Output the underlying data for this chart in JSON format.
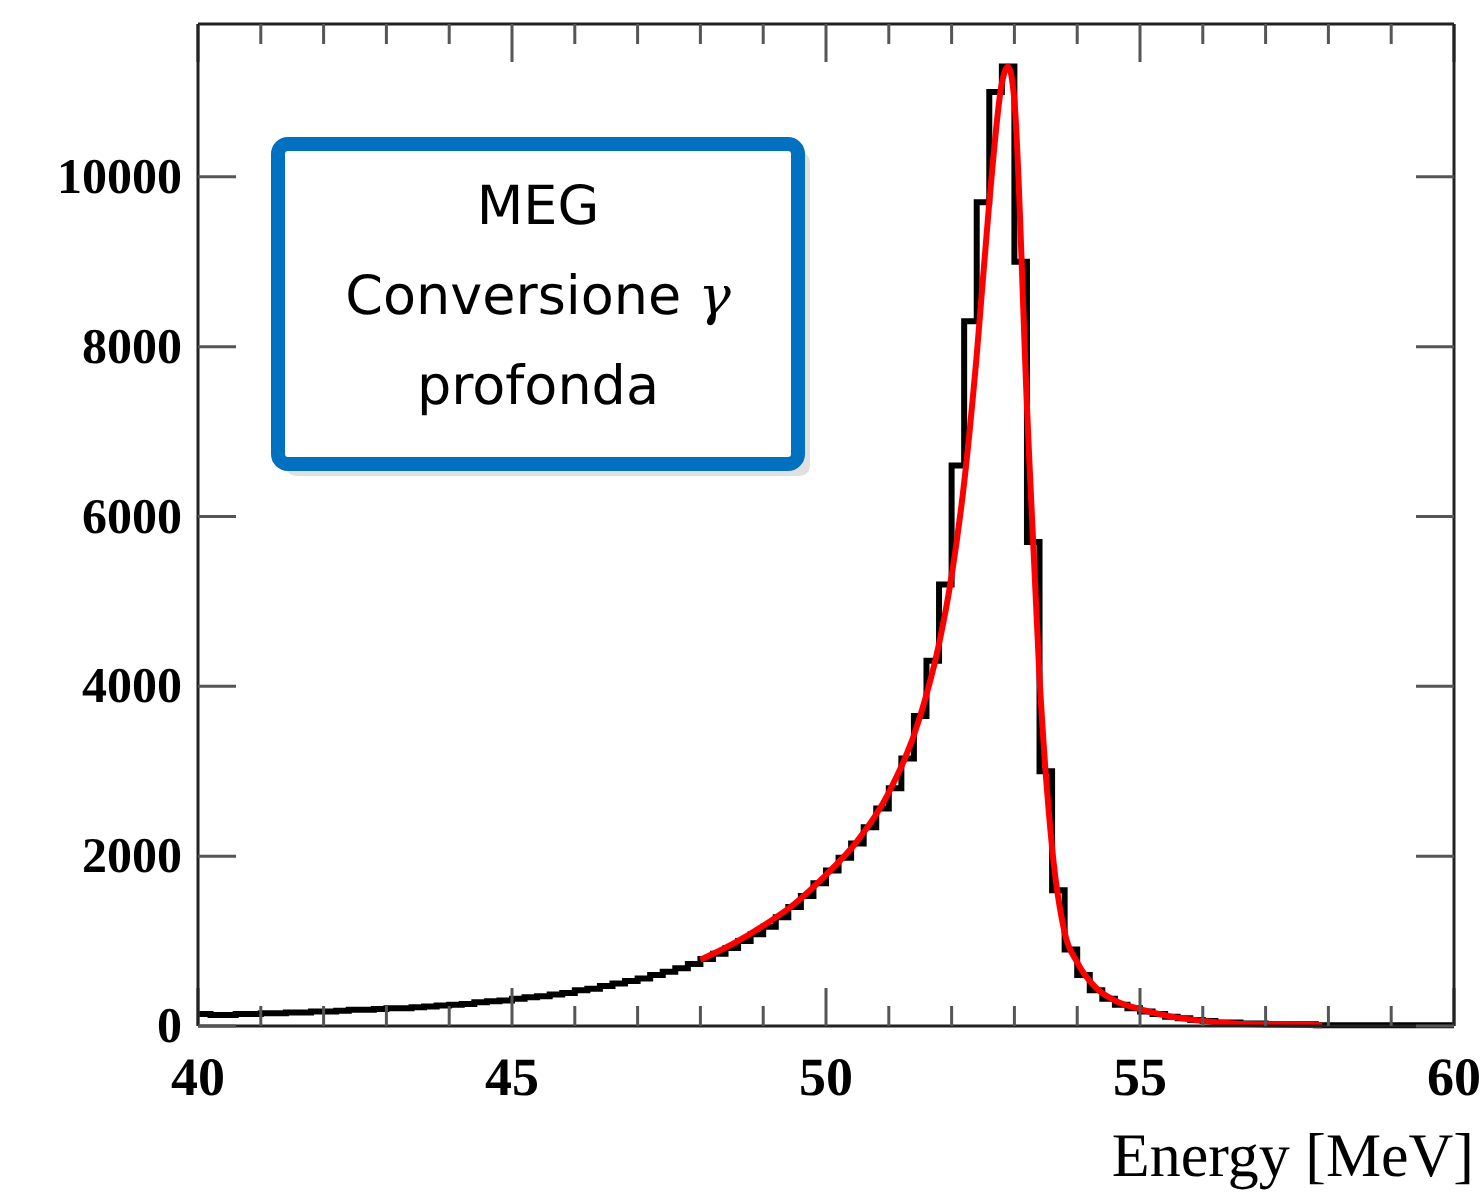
{
  "chart_data": {
    "type": "histogram",
    "xlabel": "Energy [MeV]",
    "annotations": [
      "MEG\nConversione γ\nprofonda"
    ],
    "xlim": [
      40,
      60
    ],
    "ylim": [
      0,
      11800
    ],
    "xticks": [
      40,
      {
        "value": 41,
        "label": null
      },
      {
        "value": 42,
        "label": null
      },
      {
        "value": 43,
        "label": null
      },
      {
        "value": 44,
        "label": null
      },
      45,
      {
        "value": 46,
        "label": null
      },
      {
        "value": 47,
        "label": null
      },
      {
        "value": 48,
        "label": null
      },
      {
        "value": 49,
        "label": null
      },
      50,
      {
        "value": 51,
        "label": null
      },
      {
        "value": 52,
        "label": null
      },
      {
        "value": 53,
        "label": null
      },
      {
        "value": 54,
        "label": null
      },
      55,
      {
        "value": 56,
        "label": null
      },
      {
        "value": 57,
        "label": null
      },
      {
        "value": 58,
        "label": null
      },
      {
        "value": 59,
        "label": null
      },
      60
    ],
    "yticks": [
      0,
      2000,
      4000,
      6000,
      8000,
      10000
    ],
    "grid": false,
    "bins": [
      40,
      40.2,
      40.4,
      40.6,
      40.8,
      41,
      41.2,
      41.4,
      41.6,
      41.8,
      42,
      42.2,
      42.4,
      42.6,
      42.8,
      43,
      43.2,
      43.4,
      43.6,
      43.8,
      44,
      44.2,
      44.4,
      44.6,
      44.8,
      45,
      45.2,
      45.4,
      45.6,
      45.8,
      46,
      46.2,
      46.4,
      46.6,
      46.8,
      47,
      47.2,
      47.4,
      47.6,
      47.8,
      48,
      48.2,
      48.4,
      48.6,
      48.8,
      49,
      49.2,
      49.4,
      49.6,
      49.8,
      50,
      50.2,
      50.4,
      50.6,
      50.8,
      51,
      51.2,
      51.4,
      51.6,
      51.8,
      52,
      52.2,
      52.4,
      52.6,
      52.8,
      53,
      53.2,
      53.4,
      53.6,
      53.8,
      54,
      54.2,
      54.4,
      54.6,
      54.8,
      55,
      55.2,
      55.4,
      55.6,
      55.8,
      56,
      56.2,
      56.4,
      56.6,
      56.8,
      57,
      57.2,
      57.4,
      57.6,
      57.8,
      58,
      58.2,
      58.4,
      58.6,
      58.8,
      59,
      59.2,
      59.4,
      59.6,
      59.8,
      60
    ],
    "series": [
      {
        "color": "#000000",
        "values": [
          140,
          130,
          130,
          140,
          140,
          150,
          150,
          160,
          160,
          170,
          170,
          180,
          190,
          190,
          200,
          210,
          210,
          220,
          230,
          240,
          250,
          260,
          280,
          290,
          300,
          320,
          340,
          350,
          370,
          390,
          420,
          440,
          470,
          500,
          530,
          560,
          600,
          640,
          680,
          730,
          790,
          850,
          920,
          1000,
          1080,
          1170,
          1280,
          1400,
          1530,
          1680,
          1830,
          1980,
          2150,
          2340,
          2560,
          2800,
          3150,
          3650,
          4300,
          5200,
          6600,
          8300,
          9700,
          11000,
          11300,
          9000,
          5700,
          3000,
          1600,
          900,
          600,
          420,
          320,
          250,
          210,
          170,
          140,
          110,
          90,
          70,
          60,
          40,
          40,
          30,
          30,
          20,
          20,
          20,
          20,
          10,
          10,
          10,
          10,
          10,
          10,
          10,
          10,
          10,
          10,
          10
        ]
      },
      {
        "type": "line",
        "color": "#ff0000",
        "x": [
          48,
          48.5,
          49,
          49.5,
          50,
          50.5,
          51,
          51.5,
          51.8,
          52,
          52.2,
          52.4,
          52.6,
          52.8,
          52.9,
          53,
          53.2,
          53.4,
          53.6,
          53.8,
          54,
          54.3,
          54.6,
          55,
          55.5,
          56,
          56.5,
          57,
          57.9
        ],
        "values": [
          780,
          960,
          1180,
          1440,
          1780,
          2180,
          2750,
          3650,
          4500,
          5300,
          6400,
          7900,
          9700,
          11100,
          11300,
          10900,
          7300,
          4100,
          2100,
          1100,
          750,
          450,
          300,
          200,
          110,
          60,
          30,
          20,
          10
        ]
      }
    ]
  }
}
